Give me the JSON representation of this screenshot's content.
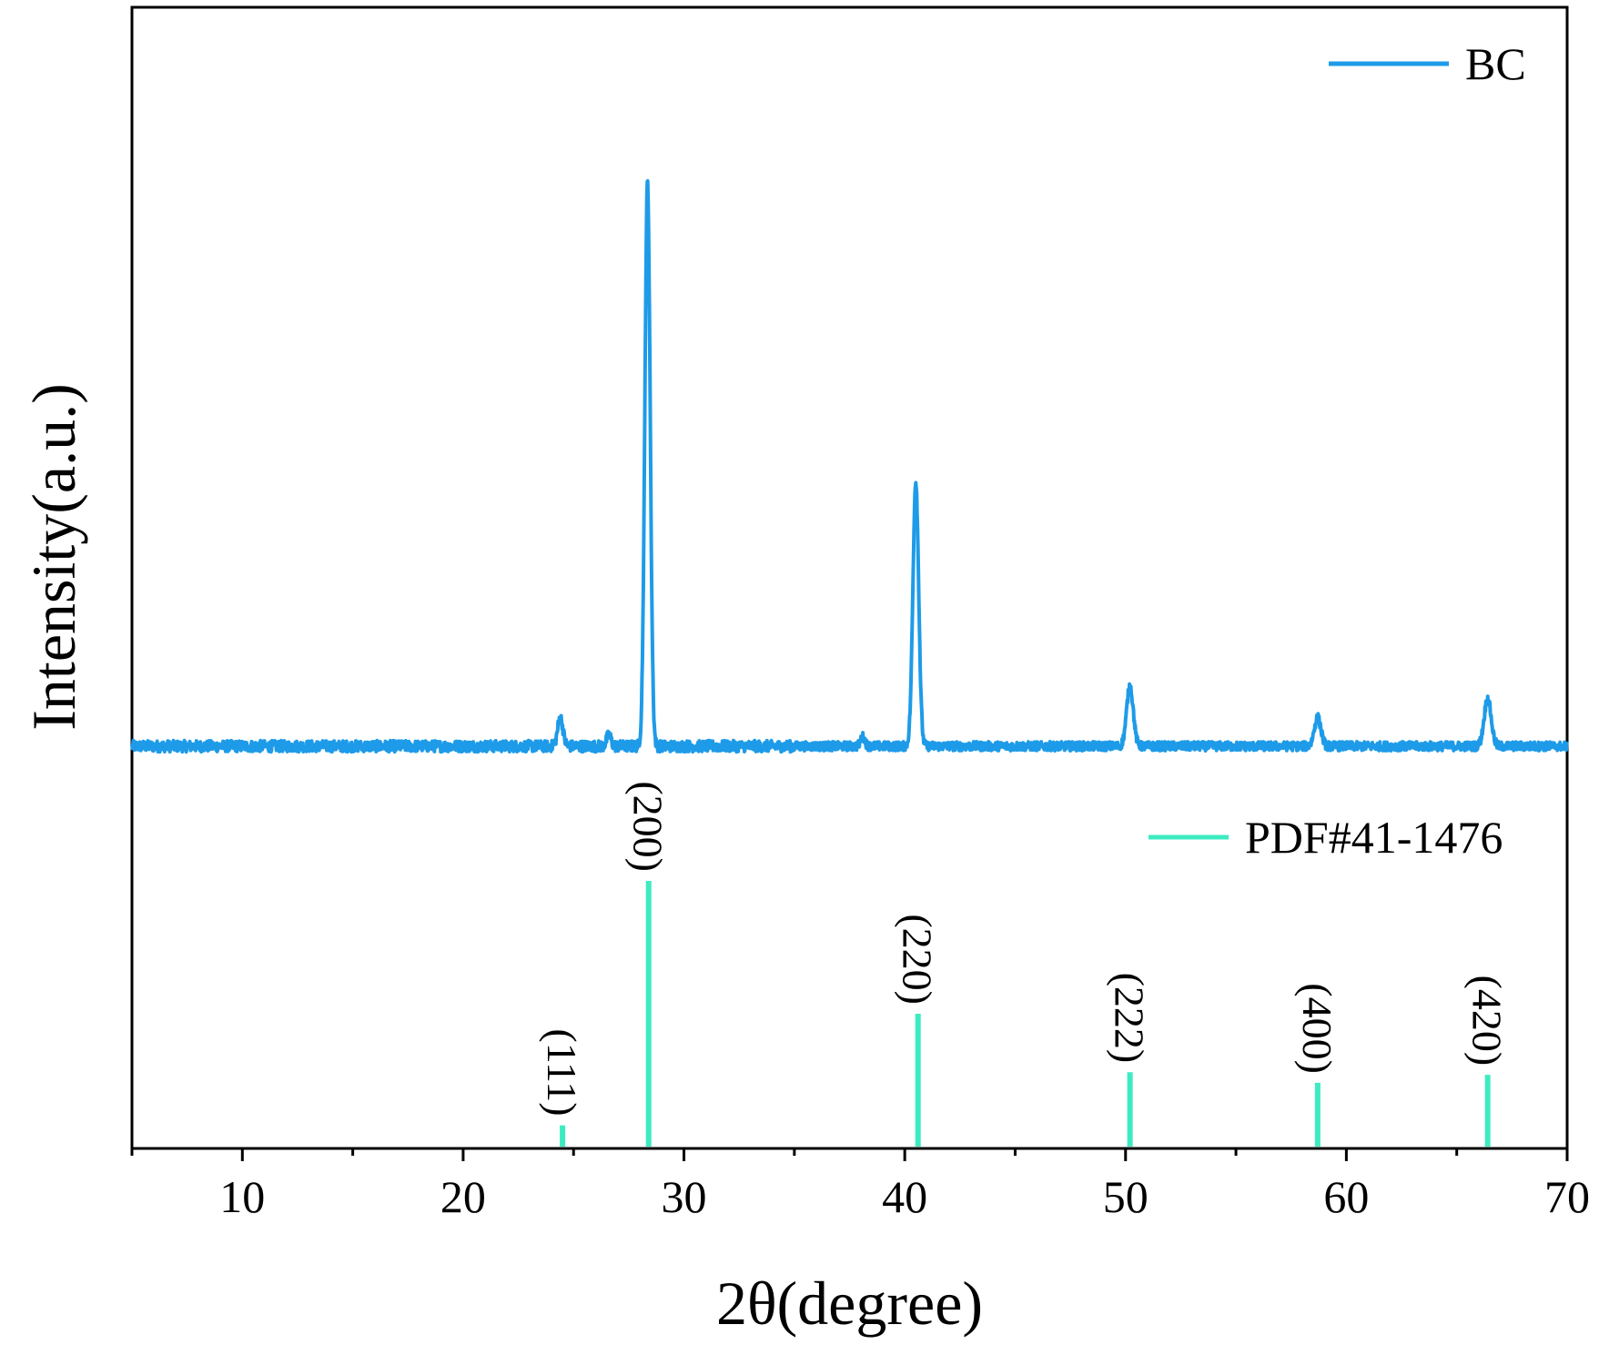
{
  "chart_data": {
    "type": "line",
    "xlabel": "2θ(degree)",
    "ylabel": "Intensity(a.u.)",
    "xlim": [
      5,
      70
    ],
    "x_ticks": [
      10,
      20,
      30,
      40,
      50,
      60,
      70
    ],
    "x_tick_labels": [
      "10",
      "20",
      "30",
      "40",
      "50",
      "60",
      "70"
    ],
    "y_ticks_shown": false,
    "grid": false,
    "series": [
      {
        "name": "BC",
        "color": "#1E9BE8",
        "baseline": 1.0,
        "noise": 0.18,
        "peaks": [
          {
            "x": 24.4,
            "height": 0.9,
            "width": 0.12
          },
          {
            "x": 26.6,
            "height": 0.35,
            "width": 0.1
          },
          {
            "x": 28.35,
            "height": 17.9,
            "width": 0.12
          },
          {
            "x": 38.1,
            "height": 0.3,
            "width": 0.1
          },
          {
            "x": 40.5,
            "height": 8.4,
            "width": 0.13
          },
          {
            "x": 50.2,
            "height": 1.9,
            "width": 0.15
          },
          {
            "x": 58.7,
            "height": 0.9,
            "width": 0.15
          },
          {
            "x": 66.4,
            "height": 1.5,
            "width": 0.16
          }
        ]
      },
      {
        "name": "PDF#41-1476",
        "color": "#3DEBC0",
        "type": "stick",
        "sticks": [
          {
            "x": 24.5,
            "intensity": 8,
            "label": "(111)"
          },
          {
            "x": 28.4,
            "intensity": 100,
            "label": "(200)"
          },
          {
            "x": 40.6,
            "intensity": 50,
            "label": "(220)"
          },
          {
            "x": 50.2,
            "intensity": 28,
            "label": "(222)"
          },
          {
            "x": 58.7,
            "intensity": 24,
            "label": "(400)"
          },
          {
            "x": 66.4,
            "intensity": 27,
            "label": "(420)"
          }
        ]
      }
    ],
    "legend": [
      {
        "label": "BC",
        "color": "#1E9BE8",
        "placement": "top-right"
      },
      {
        "label": "PDF#41-1476",
        "color": "#3DEBC0",
        "placement": "middle-right"
      }
    ]
  }
}
